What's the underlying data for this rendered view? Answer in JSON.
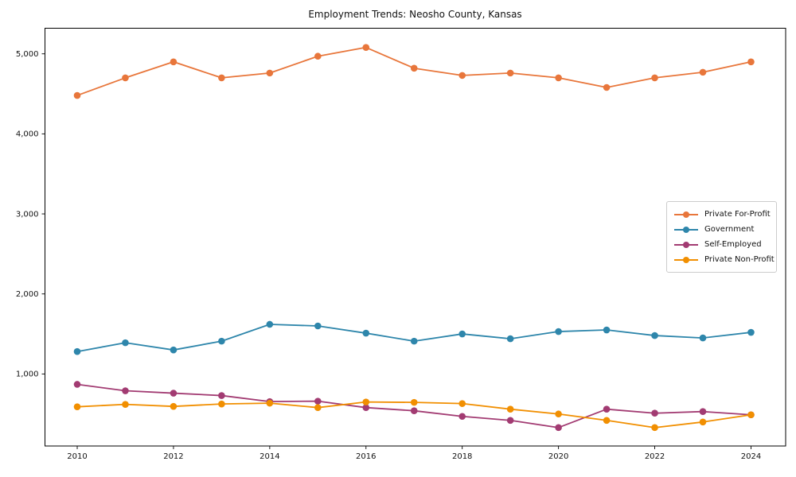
{
  "chart_data": {
    "type": "line",
    "title": "Employment Trends: Neosho County, Kansas",
    "x": [
      2010,
      2011,
      2012,
      2013,
      2014,
      2015,
      2016,
      2017,
      2018,
      2019,
      2020,
      2021,
      2022,
      2023,
      2024
    ],
    "series": [
      {
        "name": "Private For-Profit",
        "color": "#E8763B",
        "values": [
          4480,
          4700,
          4900,
          4700,
          4760,
          4970,
          5080,
          4820,
          4730,
          4760,
          4700,
          4580,
          4700,
          4770,
          4900
        ]
      },
      {
        "name": "Government",
        "color": "#2E86AB",
        "values": [
          1280,
          1390,
          1300,
          1410,
          1620,
          1600,
          1510,
          1410,
          1500,
          1440,
          1530,
          1550,
          1480,
          1450,
          1520
        ]
      },
      {
        "name": "Self-Employed",
        "color": "#A23B72",
        "values": [
          870,
          790,
          760,
          730,
          655,
          660,
          580,
          540,
          470,
          420,
          330,
          560,
          510,
          530,
          490
        ]
      },
      {
        "name": "Private Non-Profit",
        "color": "#F18F01",
        "values": [
          590,
          620,
          595,
          625,
          635,
          580,
          650,
          645,
          630,
          560,
          500,
          420,
          330,
          400,
          490
        ]
      }
    ],
    "xlim": [
      2009.33,
      2024.72
    ],
    "ylim": [
      100,
      5320
    ],
    "x_ticks": [
      {
        "value": 2010,
        "label": "2010"
      },
      {
        "value": 2012,
        "label": "2012"
      },
      {
        "value": 2014,
        "label": "2014"
      },
      {
        "value": 2016,
        "label": "2016"
      },
      {
        "value": 2018,
        "label": "2018"
      },
      {
        "value": 2020,
        "label": "2020"
      },
      {
        "value": 2022,
        "label": "2022"
      },
      {
        "value": 2024,
        "label": "2024"
      }
    ],
    "y_ticks": [
      {
        "value": 1000,
        "label": "1,000"
      },
      {
        "value": 2000,
        "label": "2,000"
      },
      {
        "value": 3000,
        "label": "3,000"
      },
      {
        "value": 4000,
        "label": "4,000"
      },
      {
        "value": 5000,
        "label": "5,000"
      }
    ],
    "grid": false,
    "legend_position": "right-center",
    "axis_color": "#000000",
    "text_color": "#111111"
  }
}
